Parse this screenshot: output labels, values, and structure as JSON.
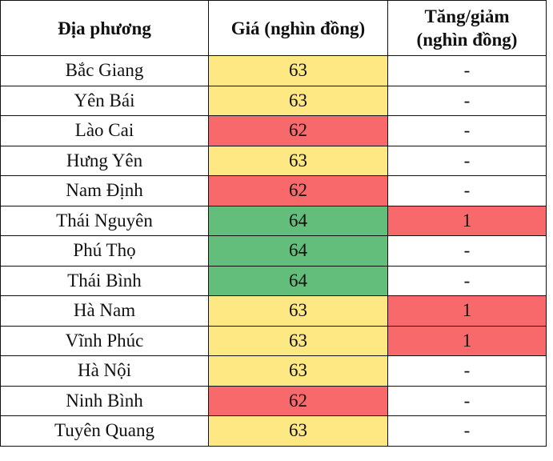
{
  "colors": {
    "yellow": "#FDE883",
    "red": "#F8696B",
    "green": "#63BE7B"
  },
  "headers": [
    "Địa phương",
    "Giá (nghìn đồng)",
    "Tăng/giảm (nghìn đồng)"
  ],
  "rows": [
    {
      "place": "Bắc Giang",
      "price": "63",
      "price_color": "yellow",
      "change": "-",
      "change_color": ""
    },
    {
      "place": "Yên Bái",
      "price": "63",
      "price_color": "yellow",
      "change": "-",
      "change_color": ""
    },
    {
      "place": "Lào Cai",
      "price": "62",
      "price_color": "red",
      "change": "-",
      "change_color": ""
    },
    {
      "place": "Hưng Yên",
      "price": "63",
      "price_color": "yellow",
      "change": "-",
      "change_color": ""
    },
    {
      "place": "Nam Định",
      "price": "62",
      "price_color": "red",
      "change": "-",
      "change_color": ""
    },
    {
      "place": "Thái Nguyên",
      "price": "64",
      "price_color": "green",
      "change": "1",
      "change_color": "red"
    },
    {
      "place": "Phú Thọ",
      "price": "64",
      "price_color": "green",
      "change": "-",
      "change_color": ""
    },
    {
      "place": "Thái Bình",
      "price": "64",
      "price_color": "green",
      "change": "-",
      "change_color": ""
    },
    {
      "place": "Hà Nam",
      "price": "63",
      "price_color": "yellow",
      "change": "1",
      "change_color": "red"
    },
    {
      "place": "Vĩnh Phúc",
      "price": "63",
      "price_color": "yellow",
      "change": "1",
      "change_color": "red"
    },
    {
      "place": "Hà Nội",
      "price": "63",
      "price_color": "yellow",
      "change": "-",
      "change_color": ""
    },
    {
      "place": "Ninh Bình",
      "price": "62",
      "price_color": "red",
      "change": "-",
      "change_color": ""
    },
    {
      "place": "Tuyên Quang",
      "price": "63",
      "price_color": "yellow",
      "change": "-",
      "change_color": ""
    }
  ]
}
